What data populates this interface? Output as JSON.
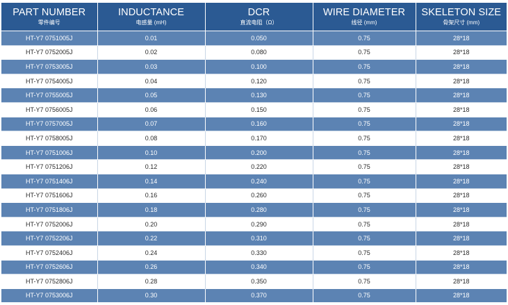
{
  "headers": [
    {
      "en": "PART NUMBER",
      "cn": "零件编号"
    },
    {
      "en": "INDUCTANCE",
      "cn": "电感量 (mH)"
    },
    {
      "en": "DCR",
      "cn": "直流电阻（Ω）"
    },
    {
      "en": "WIRE DIAMETER",
      "cn": "线径 (mm)"
    },
    {
      "en": "SKELETON SIZE",
      "cn": "骨架尺寸 (mm)"
    }
  ],
  "rows": [
    [
      "HT-Y7 0751005J",
      "0.01",
      "0.050",
      "0.75",
      "28*18"
    ],
    [
      "HT-Y7 0752005J",
      "0.02",
      "0.080",
      "0.75",
      "28*18"
    ],
    [
      "HT-Y7 0753005J",
      "0.03",
      "0.100",
      "0.75",
      "28*18"
    ],
    [
      "HT-Y7 0754005J",
      "0.04",
      "0.120",
      "0.75",
      "28*18"
    ],
    [
      "HT-Y7 0755005J",
      "0.05",
      "0.130",
      "0.75",
      "28*18"
    ],
    [
      "HT-Y7 0756005J",
      "0.06",
      "0.150",
      "0.75",
      "28*18"
    ],
    [
      "HT-Y7 0757005J",
      "0.07",
      "0.160",
      "0.75",
      "28*18"
    ],
    [
      "HT-Y7 0758005J",
      "0.08",
      "0.170",
      "0.75",
      "28*18"
    ],
    [
      "HT-Y7 0751006J",
      "0.10",
      "0.200",
      "0.75",
      "28*18"
    ],
    [
      "HT-Y7 0751206J",
      "0.12",
      "0.220",
      "0.75",
      "28*18"
    ],
    [
      "HT-Y7 0751406J",
      "0.14",
      "0.240",
      "0.75",
      "28*18"
    ],
    [
      "HT-Y7 0751606J",
      "0.16",
      "0.260",
      "0.75",
      "28*18"
    ],
    [
      "HT-Y7 0751806J",
      "0.18",
      "0.280",
      "0.75",
      "28*18"
    ],
    [
      "HT-Y7 0752006J",
      "0.20",
      "0.290",
      "0.75",
      "28*18"
    ],
    [
      "HT-Y7 0752206J",
      "0.22",
      "0.310",
      "0.75",
      "28*18"
    ],
    [
      "HT-Y7 0752406J",
      "0.24",
      "0.330",
      "0.75",
      "28*18"
    ],
    [
      "HT-Y7 0752606J",
      "0.26",
      "0.340",
      "0.75",
      "28*18"
    ],
    [
      "HT-Y7 0752806J",
      "0.28",
      "0.350",
      "0.75",
      "28*18"
    ],
    [
      "HT-Y7 0753006J",
      "0.30",
      "0.370",
      "0.75",
      "28*18"
    ]
  ],
  "colors": {
    "header_bg": "#2b5a93",
    "stripe_bg": "#5c83b3",
    "plain_bg": "#ffffff"
  }
}
